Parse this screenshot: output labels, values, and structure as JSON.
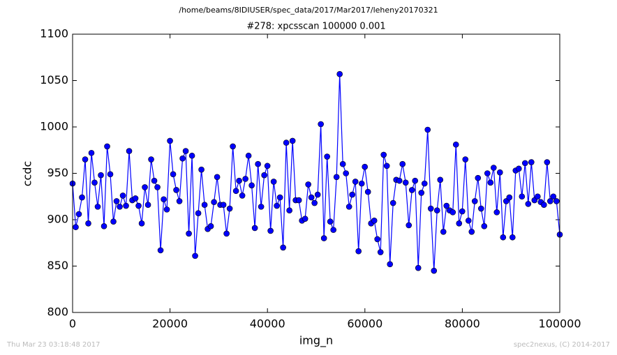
{
  "chart_data": {
    "type": "line",
    "suptitle": "/home/beams/8IDIUSER/spec_data/2017/Mar2017/leheny20170321",
    "title": "#278: xpcsscan 100000 0.001",
    "xlabel": "img_n",
    "ylabel": "ccdc",
    "footer_left": "Thu Mar 23 03:18:48 2017",
    "footer_right": "spec2nexus, (C) 2014-2017",
    "xlim": [
      0,
      100000
    ],
    "xticks": [
      0,
      20000,
      40000,
      60000,
      80000,
      100000
    ],
    "ylim": [
      800,
      1100
    ],
    "yticks": [
      800,
      850,
      900,
      950,
      1000,
      1050,
      1100
    ],
    "grid": false,
    "x": [
      0,
      645,
      1290,
      1935,
      2580,
      3225,
      3870,
      4515,
      5160,
      5805,
      6450,
      7095,
      7740,
      8385,
      9030,
      9675,
      10320,
      10965,
      11610,
      12255,
      12900,
      13545,
      14190,
      14835,
      15480,
      16125,
      16770,
      17415,
      18060,
      18705,
      19350,
      19995,
      20640,
      21285,
      21930,
      22575,
      23220,
      23865,
      24510,
      25155,
      25800,
      26445,
      27090,
      27735,
      28380,
      29025,
      29670,
      30315,
      30960,
      31605,
      32250,
      32895,
      33540,
      34185,
      34830,
      35475,
      36120,
      36765,
      37410,
      38055,
      38700,
      39345,
      39990,
      40635,
      41280,
      41925,
      42570,
      43215,
      43860,
      44505,
      45150,
      45795,
      46440,
      47085,
      47730,
      48375,
      49020,
      49665,
      50310,
      50955,
      51600,
      52245,
      52890,
      53535,
      54180,
      54825,
      55470,
      56115,
      56760,
      57405,
      58050,
      58695,
      59340,
      59985,
      60630,
      61275,
      61920,
      62565,
      63210,
      63855,
      64500,
      65145,
      65790,
      66435,
      67080,
      67725,
      68370,
      69015,
      69660,
      70305,
      70950,
      71595,
      72240,
      72885,
      73530,
      74175,
      74820,
      75465,
      76110,
      76755,
      77400,
      78045,
      78690,
      79335,
      79980,
      80625,
      81270,
      81915,
      82560,
      83205,
      83850,
      84495,
      85140,
      85785,
      86430,
      87075,
      87720,
      88365,
      89010,
      89655,
      90300,
      90945,
      91590,
      92235,
      92880,
      93525,
      94170,
      94815,
      95460,
      96105,
      96750,
      97395,
      98040,
      98685,
      99330,
      100000
    ],
    "series": [
      {
        "color": "#0000ff",
        "values": [
          939,
          892,
          906,
          924,
          965,
          896,
          972,
          940,
          914,
          948,
          893,
          979,
          949,
          898,
          920,
          914,
          926,
          915,
          974,
          921,
          923,
          915,
          896,
          935,
          916,
          965,
          942,
          935,
          867,
          922,
          911,
          985,
          949,
          932,
          920,
          966,
          974,
          885,
          969,
          861,
          907,
          954,
          916,
          890,
          893,
          919,
          946,
          916,
          916,
          885,
          912,
          979,
          931,
          942,
          926,
          944,
          969,
          937,
          891,
          960,
          914,
          948,
          958,
          888,
          941,
          915,
          924,
          870,
          983,
          910,
          985,
          921,
          921,
          899,
          901,
          938,
          924,
          918,
          927,
          1003,
          880,
          968,
          898,
          889,
          946,
          1057,
          960,
          950,
          914,
          927,
          941,
          866,
          939,
          957,
          930,
          896,
          899,
          879,
          865,
          970,
          958,
          852,
          918,
          943,
          942,
          960,
          940,
          894,
          932,
          942,
          848,
          929,
          939,
          997,
          912,
          845,
          910,
          943,
          887,
          915,
          910,
          908,
          981,
          896,
          909,
          965,
          899,
          887,
          920,
          945,
          912,
          893,
          950,
          940,
          956,
          908,
          951,
          881,
          920,
          924,
          881,
          953,
          955,
          925,
          961,
          917,
          962,
          921,
          925,
          919,
          916,
          962,
          920,
          925,
          920,
          884
        ]
      }
    ]
  }
}
